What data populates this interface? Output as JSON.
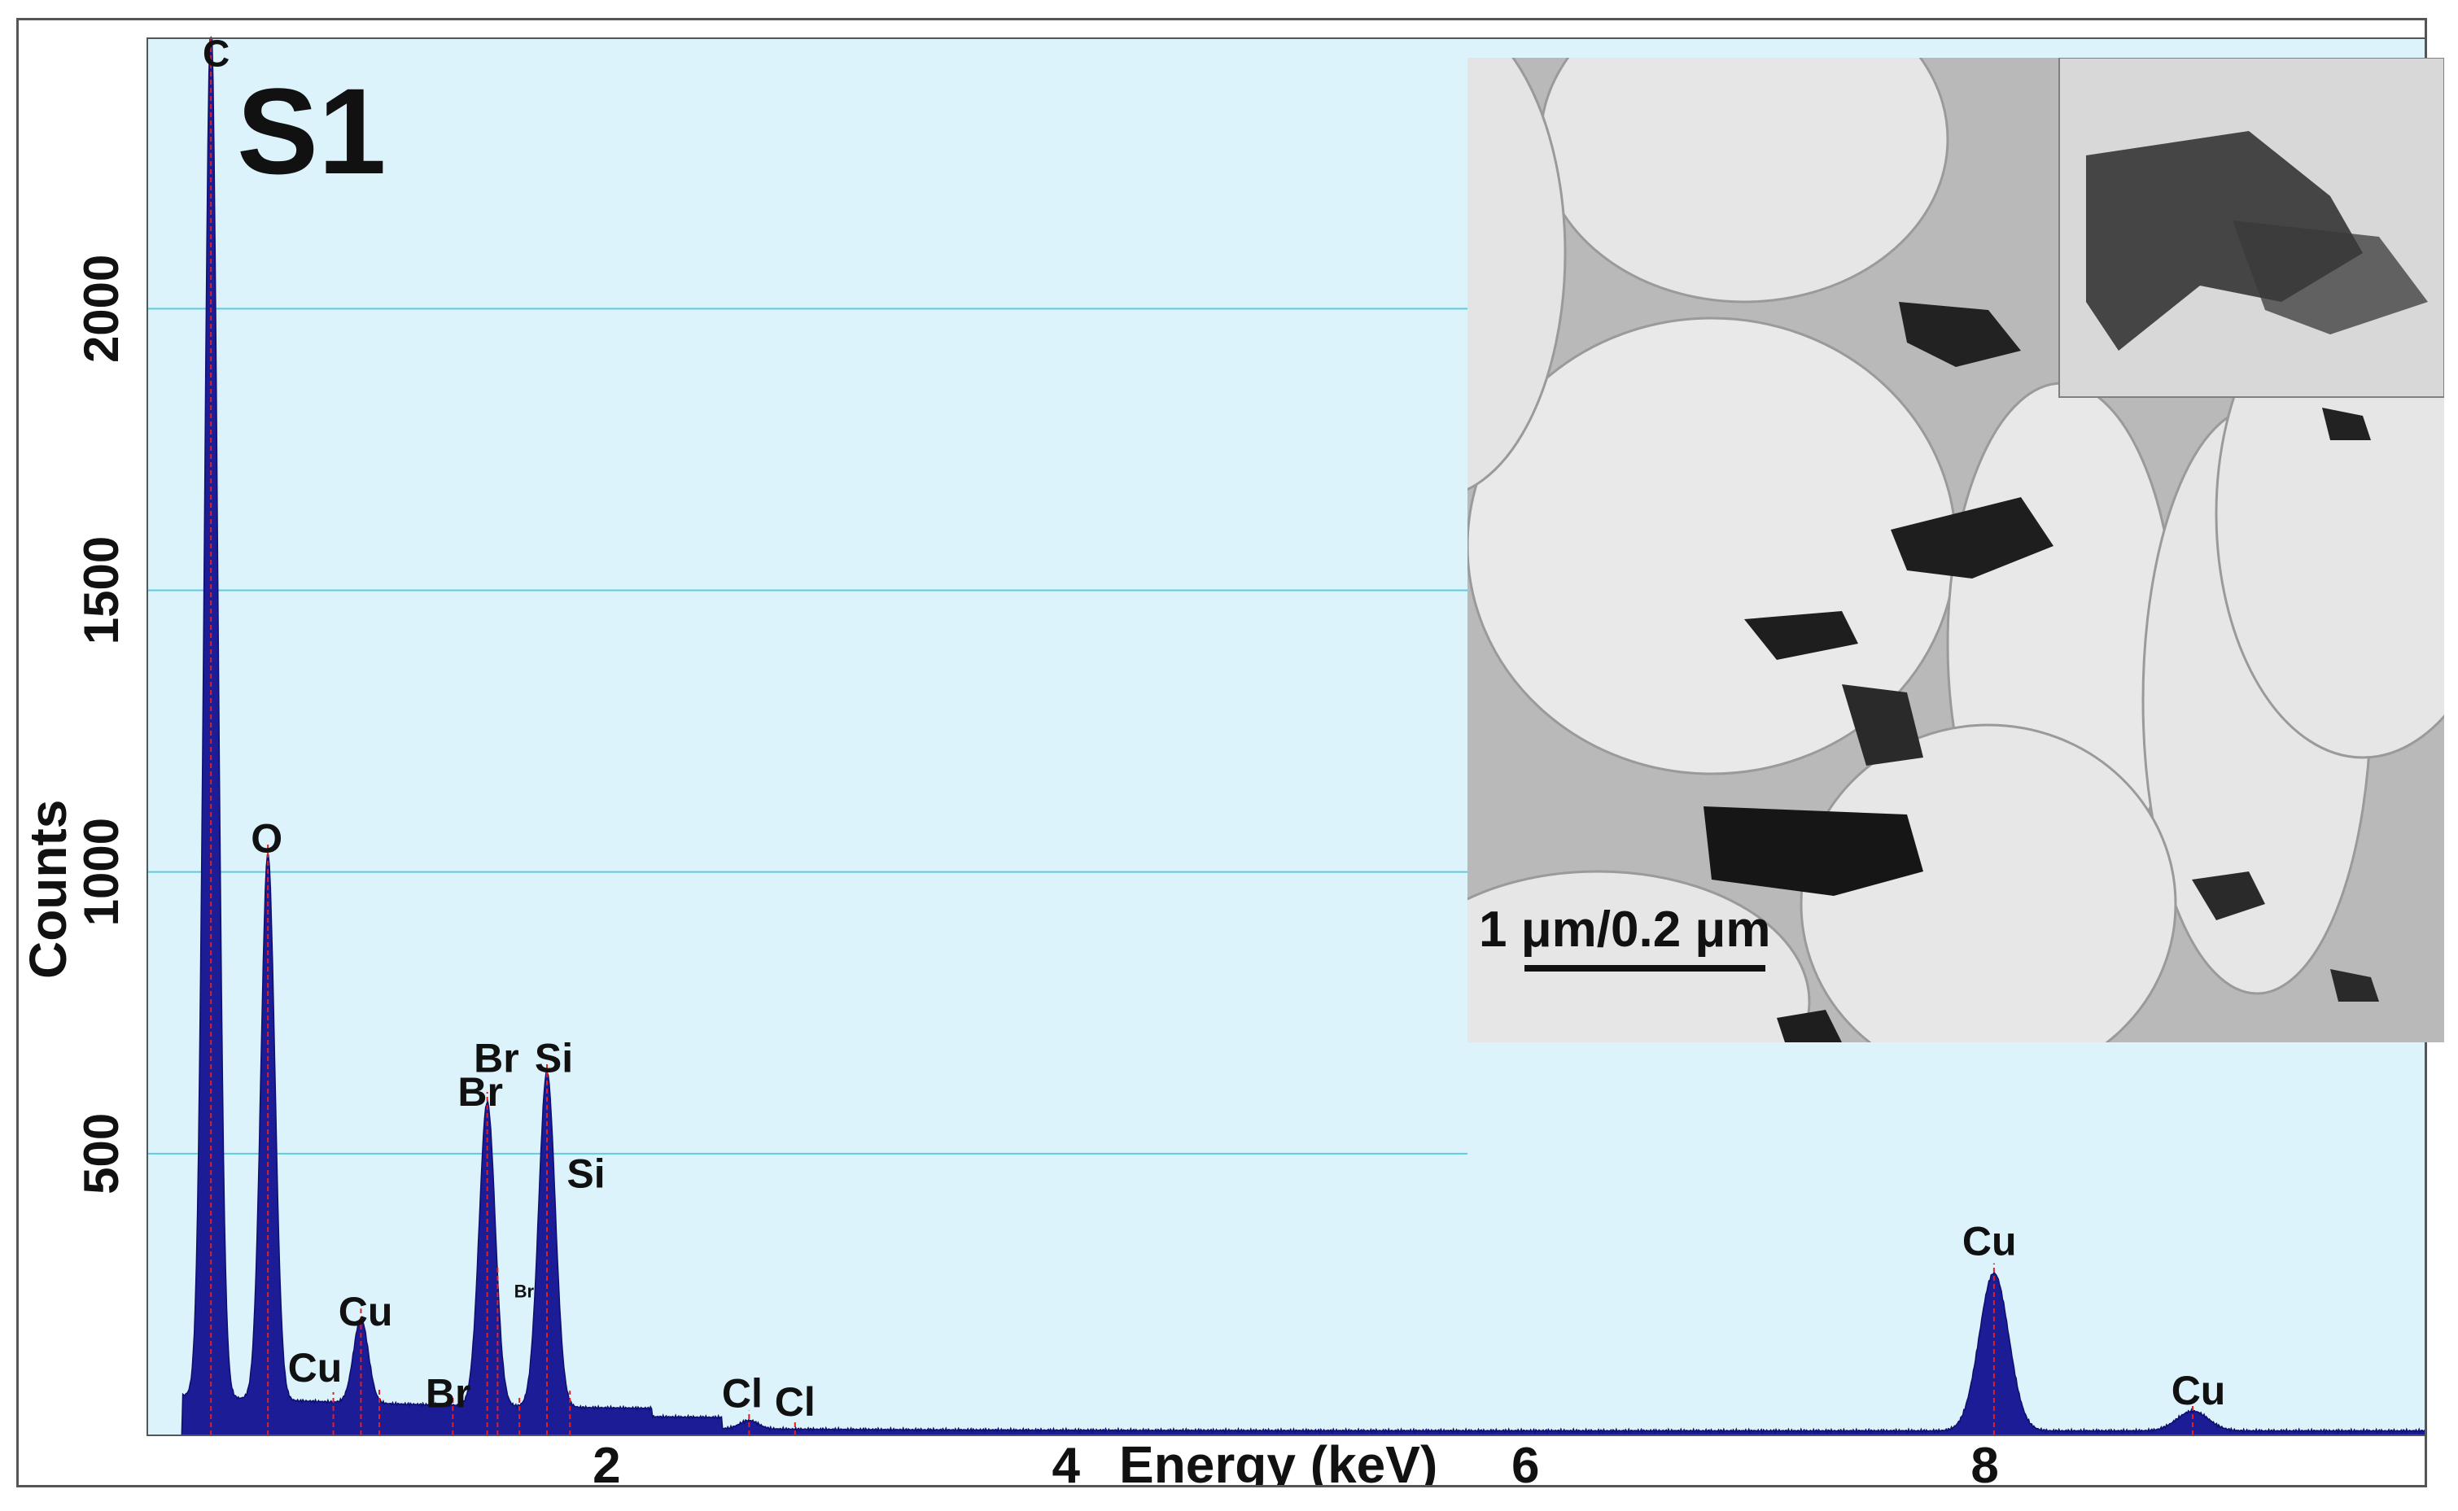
{
  "chart_data": {
    "type": "area",
    "panel_label": "S1",
    "xlabel": "Energy (keV)",
    "ylabel": "Counts",
    "xlim": [
      0,
      10
    ],
    "ylim": [
      0,
      2480
    ],
    "x_ticks": [
      2,
      4,
      6,
      8
    ],
    "y_ticks": [
      500,
      1000,
      1500,
      2000
    ],
    "grid": "horizontal",
    "colors": {
      "plot_bg": "#dcf3fb",
      "fill": "#1c1c96",
      "grid": "#5fcbdd",
      "peak_marker": "#e02020"
    },
    "peaks": [
      {
        "element": "C",
        "energy": 0.277,
        "counts": 2480
      },
      {
        "element": "O",
        "energy": 0.525,
        "counts": 990
      },
      {
        "element": "Cu",
        "energy": 0.93,
        "counts": 170
      },
      {
        "element": "Br",
        "energy": 1.48,
        "counts": 560
      },
      {
        "element": "Si",
        "energy": 1.74,
        "counts": 615
      },
      {
        "element": "Cl",
        "energy": 2.62,
        "counts": 35
      },
      {
        "element": "Cu",
        "energy": 8.04,
        "counts": 300
      },
      {
        "element": "Cu",
        "energy": 8.905,
        "counts": 55
      }
    ],
    "annotations": [
      {
        "text": "C",
        "x": 0.3,
        "y": 2430,
        "size": "small"
      },
      {
        "text": "O",
        "x": 0.52,
        "y": 1035,
        "size": "normal"
      },
      {
        "text": "Cu",
        "x": 0.95,
        "y": 195,
        "size": "normal"
      },
      {
        "text": "Cu",
        "x": 0.73,
        "y": 95,
        "size": "normal"
      },
      {
        "text": "Br",
        "x": 1.31,
        "y": 50,
        "size": "normal"
      },
      {
        "text": "Br",
        "x": 1.45,
        "y": 585,
        "size": "normal"
      },
      {
        "text": "Br",
        "x": 1.52,
        "y": 645,
        "size": "normal"
      },
      {
        "text": "Si",
        "x": 1.77,
        "y": 645,
        "size": "normal"
      },
      {
        "text": "Br",
        "x": 1.64,
        "y": 245,
        "size": "tiny"
      },
      {
        "text": "Si",
        "x": 1.91,
        "y": 440,
        "size": "normal"
      },
      {
        "text": "Cl",
        "x": 2.59,
        "y": 50,
        "size": "normal"
      },
      {
        "text": "Cl",
        "x": 2.82,
        "y": 35,
        "size": "normal"
      },
      {
        "text": "Cu",
        "x": 8.02,
        "y": 320,
        "size": "normal"
      },
      {
        "text": "Cu",
        "x": 8.93,
        "y": 55,
        "size": "normal"
      }
    ],
    "markers": [
      0.277,
      0.525,
      0.81,
      0.93,
      1.01,
      1.33,
      1.48,
      1.525,
      1.62,
      1.74,
      1.84,
      2.62,
      2.82,
      8.04,
      8.905
    ]
  },
  "inset": {
    "scalebar_label": "1 μm/0.2 μm",
    "colors": {
      "background": "#bdbdbd",
      "holes": "#e8e8e8",
      "particles": "#1e1e1e"
    }
  }
}
